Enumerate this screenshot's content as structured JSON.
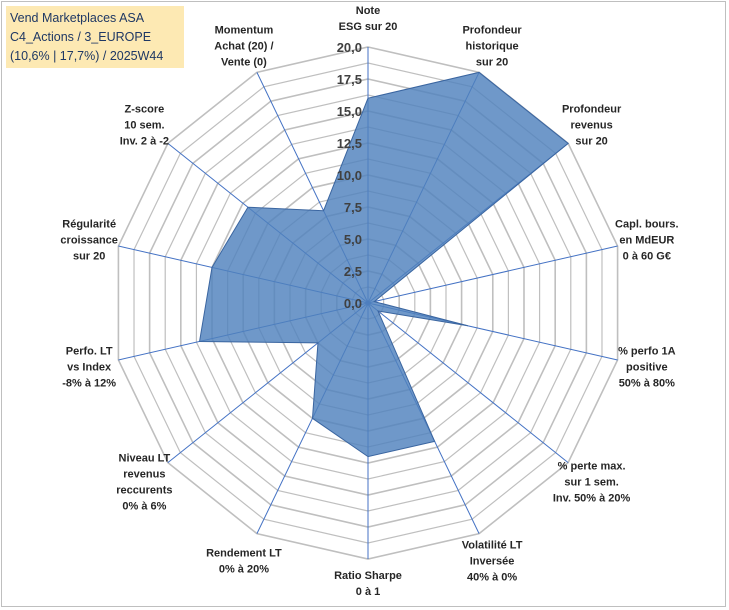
{
  "title": {
    "line1": "Vend Marketplaces ASA",
    "line2": "C4_Actions / 3_EUROPE",
    "line3": "(10,6% | 17,7%) / 2025W44"
  },
  "chart_data": {
    "type": "radar",
    "ylim": [
      0,
      20
    ],
    "ticks": [
      "0,0",
      "2,5",
      "5,0",
      "7,5",
      "10,0",
      "12,5",
      "15,0",
      "17,5",
      "20,0"
    ],
    "axes": [
      {
        "lines": [
          "Note",
          "ESG sur 20"
        ]
      },
      {
        "lines": [
          "Profondeur",
          "historique",
          "sur 20"
        ]
      },
      {
        "lines": [
          "Profondeur",
          "revenus",
          "sur 20"
        ]
      },
      {
        "lines": [
          "Capl. bours.",
          "en MdEUR",
          "0 à 60 G€"
        ]
      },
      {
        "lines": [
          "% perfo 1A",
          "positive",
          "50% à 80%"
        ]
      },
      {
        "lines": [
          "% perte max.",
          "sur 1 sem.",
          "Inv. 50% à 20%"
        ]
      },
      {
        "lines": [
          "Volatilité LT",
          "Inversée",
          "40% à 0%"
        ]
      },
      {
        "lines": [
          "Ratio Sharpe",
          "0 à 1"
        ]
      },
      {
        "lines": [
          "Rendement LT",
          "0% à 20%"
        ]
      },
      {
        "lines": [
          "Niveau LT",
          "revenus",
          "reccurents",
          "0% à 6%"
        ]
      },
      {
        "lines": [
          "Perfo. LT",
          "vs Index",
          "-8% à 12%"
        ]
      },
      {
        "lines": [
          "Régularité",
          "croissance",
          "sur 20"
        ]
      },
      {
        "lines": [
          "Z-score",
          "10 sem.",
          "Inv. 2 à -2"
        ]
      },
      {
        "lines": [
          "Momentum",
          "Achat (20) /",
          "Vente (0)"
        ]
      }
    ],
    "series": [
      {
        "name": "Vend Marketplaces ASA",
        "values": [
          16,
          20,
          20,
          0.5,
          8,
          1,
          12,
          12,
          10,
          5,
          13.5,
          12.5,
          12,
          8
        ],
        "color": "#4f81bd"
      }
    ]
  }
}
